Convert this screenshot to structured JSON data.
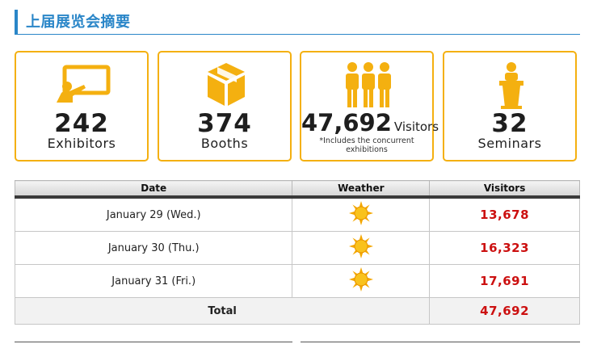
{
  "header": {
    "title": "上届展览会摘要"
  },
  "cards": [
    {
      "value": "242",
      "label": "Exhibitors",
      "icon": "presentation-icon"
    },
    {
      "value": "374",
      "label": "Booths",
      "icon": "box-icon"
    },
    {
      "value": "47,692",
      "label": "Visitors",
      "note": "*Includes the concurrent exhibitions",
      "icon": "people-icon"
    },
    {
      "value": "32",
      "label": "Seminars",
      "icon": "podium-icon"
    }
  ],
  "table": {
    "headers": [
      "Date",
      "Weather",
      "Visitors"
    ],
    "rows": [
      {
        "date": "January 29 (Wed.)",
        "weather": "sun-icon",
        "visitors": "13,678"
      },
      {
        "date": "January 30 (Thu.)",
        "weather": "sun-icon",
        "visitors": "16,323"
      },
      {
        "date": "January 31 (Fri.)",
        "weather": "sun-icon",
        "visitors": "17,691"
      }
    ],
    "total_label": "Total",
    "total_value": "47,692"
  },
  "colors": {
    "accent": "#2a86c8",
    "card_border": "#f4b010",
    "visitor_value": "#cc1010",
    "icon_fill": "#f4b010"
  }
}
